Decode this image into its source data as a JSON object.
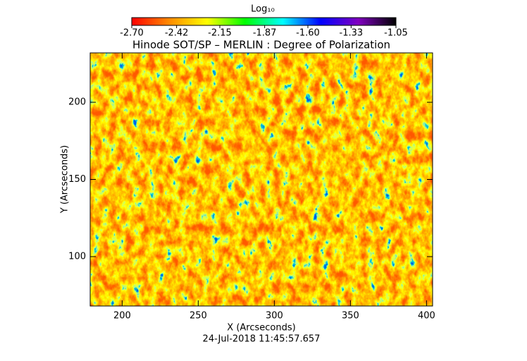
{
  "chart_data": {
    "type": "heatmap",
    "title": "Hinode SOT/SP – MERLIN : Degree of Polarization",
    "colorbar_label": "Log₁₀",
    "xlabel": "X (Arcseconds)",
    "ylabel": "Y (Arcseconds)",
    "footer": "24-Jul-2018 11:45:57.657",
    "xlim": [
      179,
      404
    ],
    "xticks": [
      200,
      250,
      300,
      350,
      400
    ],
    "ylim": [
      68,
      232
    ],
    "yticks": [
      100,
      150,
      200
    ],
    "clim": [
      -2.7,
      -1.05
    ],
    "cticks": [
      {
        "value": -2.7,
        "label": "-2.70"
      },
      -2.42,
      -2.15,
      -1.87,
      {
        "value": -1.6,
        "label": "-1.60"
      },
      -1.33,
      -1.05
    ],
    "colormap": [
      "#ff0000",
      "#ff8c00",
      "#ffff00",
      "#00ff00",
      "#00ffff",
      "#0000ff",
      "#8000c0",
      "#000000"
    ]
  }
}
